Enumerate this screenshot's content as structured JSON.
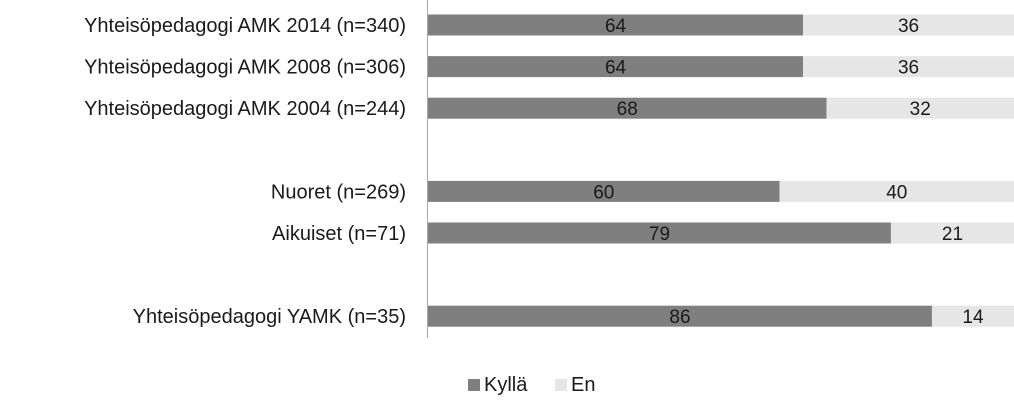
{
  "chart_data": {
    "type": "bar",
    "orientation": "horizontal",
    "stacked": true,
    "percent_stacked": true,
    "title": "",
    "xlabel": "",
    "ylabel": "",
    "xlim": [
      0,
      100
    ],
    "grid": false,
    "legend_position": "bottom",
    "categories": [
      "Yhteisöpedagogi AMK 2014 (n=340)",
      "Yhteisöpedagogi AMK 2008 (n=306)",
      "Yhteisöpedagogi AMK 2004 (n=244)",
      "",
      "Nuoret (n=269)",
      "Aikuiset (n=71)",
      "",
      "Yhteisöpedagogi YAMK (n=35)"
    ],
    "series": [
      {
        "name": "Kyllä",
        "color": "#7f7f7f",
        "values": [
          64,
          64,
          68,
          null,
          60,
          79,
          null,
          86
        ]
      },
      {
        "name": "En",
        "color": "#e6e6e6",
        "values": [
          36,
          36,
          32,
          null,
          40,
          21,
          null,
          14
        ]
      }
    ]
  }
}
